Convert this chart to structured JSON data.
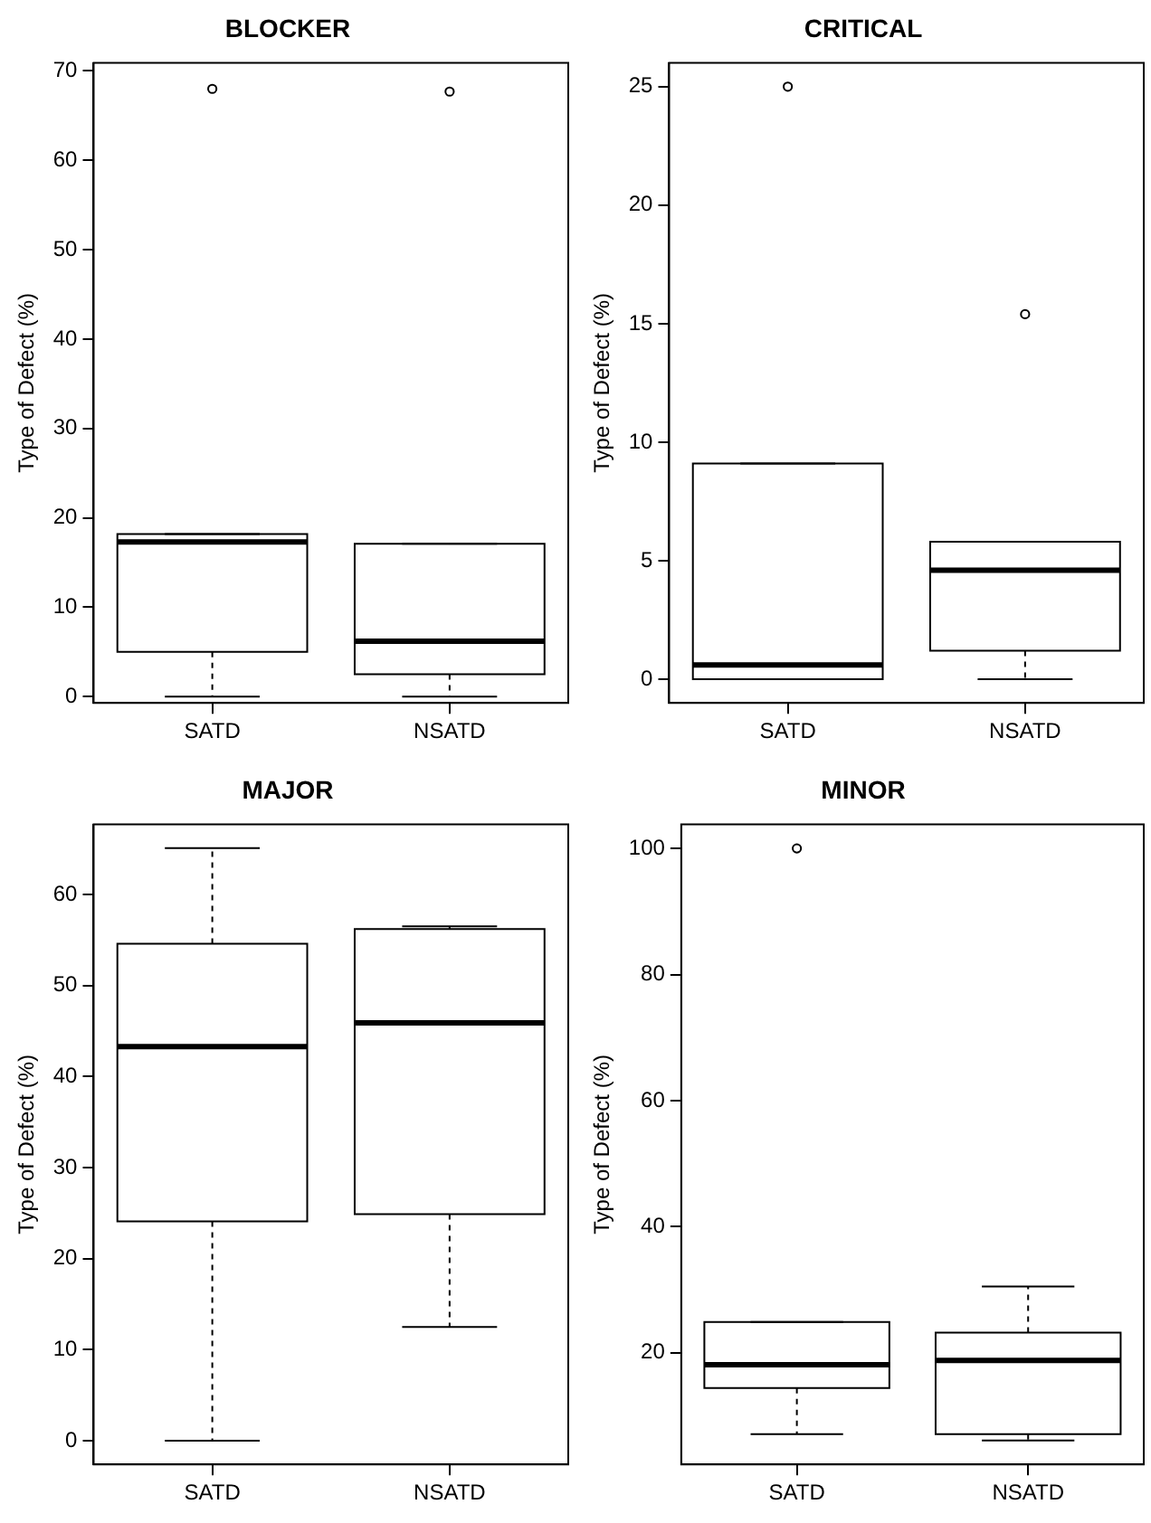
{
  "chart_data": [
    {
      "type": "box",
      "title": "BLOCKER",
      "ylabel": "Type of Defect (%)",
      "categories": [
        "SATD",
        "NSATD"
      ],
      "ylim": [
        -0.7,
        70.9
      ],
      "yticks": [
        0,
        10,
        20,
        30,
        40,
        50,
        60,
        70
      ],
      "grid": false,
      "boxes": [
        {
          "low": 0,
          "q1": 5,
          "median": 17.3,
          "q3": 18.2,
          "high": 18.2,
          "outliers": [
            68
          ]
        },
        {
          "low": 0,
          "q1": 2.5,
          "median": 6.2,
          "q3": 17.1,
          "high": 17.1,
          "outliers": [
            67.7
          ]
        }
      ]
    },
    {
      "type": "box",
      "title": "CRITICAL",
      "ylabel": "Type of Defect (%)",
      "categories": [
        "SATD",
        "NSATD"
      ],
      "ylim": [
        -1,
        26
      ],
      "yticks": [
        0,
        5,
        10,
        15,
        20,
        25
      ],
      "grid": false,
      "boxes": [
        {
          "low": 0,
          "q1": 0,
          "median": 0.6,
          "q3": 9.1,
          "high": 9.1,
          "outliers": [
            25
          ]
        },
        {
          "low": 0,
          "q1": 1.2,
          "median": 4.6,
          "q3": 5.8,
          "high": 5.8,
          "outliers": [
            15.4
          ]
        }
      ]
    },
    {
      "type": "box",
      "title": "MAJOR",
      "ylabel": "Type of Defect (%)",
      "categories": [
        "SATD",
        "NSATD"
      ],
      "ylim": [
        -2.6,
        67.7
      ],
      "yticks": [
        0,
        10,
        20,
        30,
        40,
        50,
        60
      ],
      "grid": false,
      "boxes": [
        {
          "low": 0,
          "q1": 24.1,
          "median": 43.3,
          "q3": 54.6,
          "high": 65.1
        },
        {
          "low": 12.5,
          "q1": 24.9,
          "median": 45.9,
          "q3": 56.2,
          "high": 56.5
        }
      ]
    },
    {
      "type": "box",
      "title": "MINOR",
      "ylabel": "Type of Defect (%)",
      "categories": [
        "SATD",
        "NSATD"
      ],
      "ylim": [
        2.3,
        103.8
      ],
      "yticks": [
        20,
        40,
        60,
        80,
        100
      ],
      "grid": false,
      "boxes": [
        {
          "low": 7.1,
          "q1": 14.4,
          "median": 18.1,
          "q3": 24.9,
          "high": 24.9,
          "outliers": [
            100
          ]
        },
        {
          "low": 6.1,
          "q1": 7.1,
          "median": 18.8,
          "q3": 23.2,
          "high": 30.5
        }
      ]
    }
  ]
}
